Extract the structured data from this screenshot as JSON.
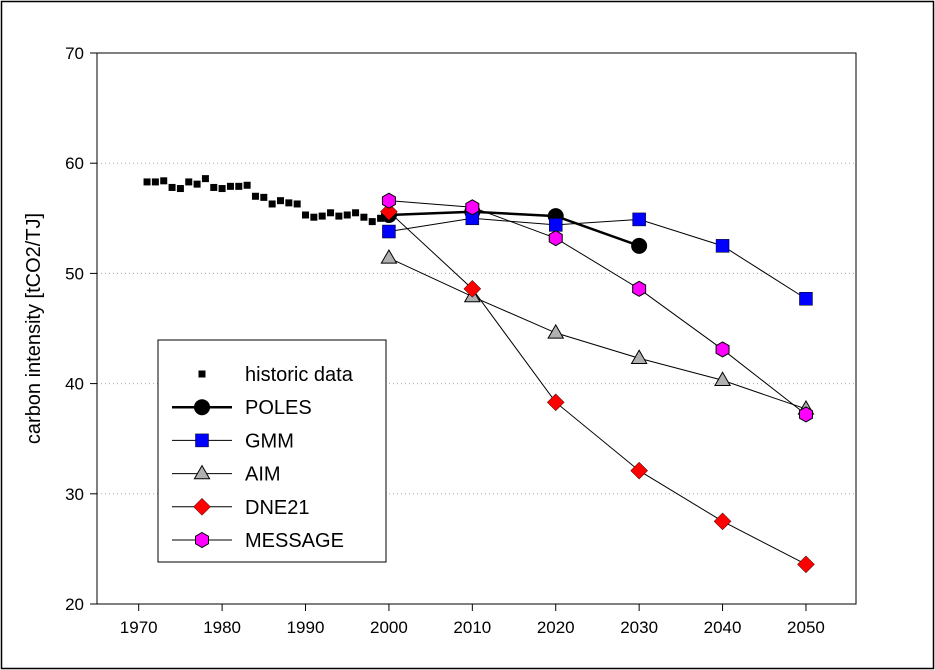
{
  "chart_data": {
    "type": "line",
    "title": "",
    "xlabel": "",
    "ylabel": "carbon intensity [tCO2/TJ]",
    "xlim": [
      1965,
      2056
    ],
    "ylim": [
      20,
      70
    ],
    "xticks": [
      1970,
      1980,
      1990,
      2000,
      2010,
      2020,
      2030,
      2040,
      2050
    ],
    "yticks": [
      20,
      30,
      40,
      50,
      60,
      70
    ],
    "grid": "horizontal dotted",
    "legend_position": "lower-left",
    "series": [
      {
        "name": "historic data",
        "marker": "small-square",
        "line": false,
        "color": "#000000",
        "x": [
          1971,
          1972,
          1973,
          1974,
          1975,
          1976,
          1977,
          1978,
          1979,
          1980,
          1981,
          1982,
          1983,
          1984,
          1985,
          1986,
          1987,
          1988,
          1989,
          1990,
          1991,
          1992,
          1993,
          1994,
          1995,
          1996,
          1997,
          1998,
          1999,
          2000
        ],
        "y": [
          58.3,
          58.3,
          58.4,
          57.8,
          57.7,
          58.3,
          58.1,
          58.6,
          57.8,
          57.7,
          57.9,
          57.9,
          58.0,
          57.0,
          56.9,
          56.3,
          56.6,
          56.4,
          56.3,
          55.3,
          55.1,
          55.2,
          55.5,
          55.2,
          55.3,
          55.5,
          55.1,
          54.7,
          55.0,
          55.3
        ]
      },
      {
        "name": "POLES",
        "marker": "circle",
        "color": "#000000",
        "line_width": 2.5,
        "x": [
          2000,
          2010,
          2020,
          2030
        ],
        "y": [
          55.3,
          55.6,
          55.2,
          52.5
        ]
      },
      {
        "name": "GMM",
        "marker": "square",
        "color": "#0000ff",
        "x": [
          2000,
          2010,
          2020,
          2030,
          2040,
          2050
        ],
        "y": [
          53.8,
          55.0,
          54.4,
          54.9,
          52.5,
          47.7
        ]
      },
      {
        "name": "AIM",
        "marker": "triangle",
        "color": "#b0b0b0",
        "x": [
          2000,
          2010,
          2020,
          2030,
          2040,
          2050
        ],
        "y": [
          51.4,
          47.9,
          44.6,
          42.3,
          40.3,
          37.7
        ]
      },
      {
        "name": "DNE21",
        "marker": "diamond",
        "color": "#ff0000",
        "x": [
          2000,
          2010,
          2020,
          2030,
          2040,
          2050
        ],
        "y": [
          55.6,
          48.6,
          38.3,
          32.1,
          27.5,
          23.6
        ]
      },
      {
        "name": "MESSAGE",
        "marker": "hexagon",
        "color": "#ff00ff",
        "x": [
          2000,
          2010,
          2020,
          2030,
          2040,
          2050
        ],
        "y": [
          56.6,
          56.0,
          53.2,
          48.6,
          43.1,
          37.2
        ]
      }
    ]
  }
}
